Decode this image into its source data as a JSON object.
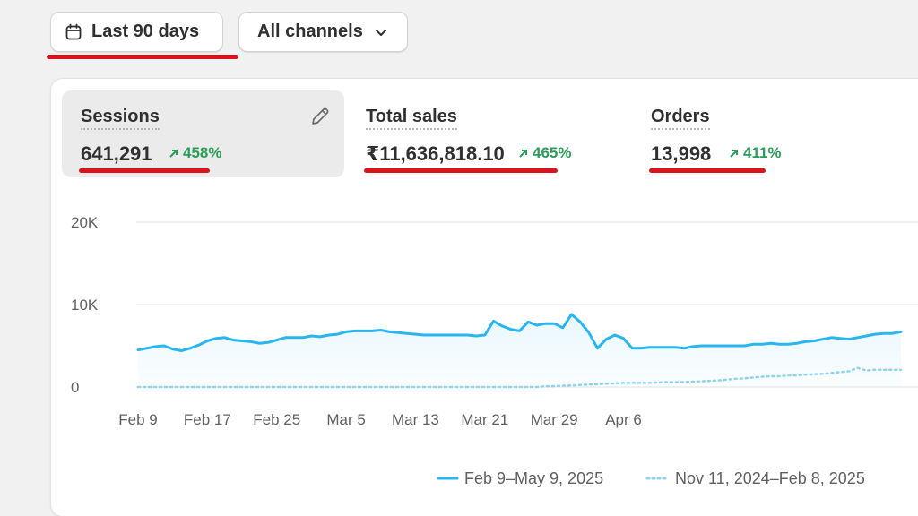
{
  "toolbar": {
    "date_range_label": "Last 90 days",
    "channels_label": "All channels"
  },
  "metrics": [
    {
      "label": "Sessions",
      "value": "641,291",
      "change": "458%"
    },
    {
      "label": "Total sales",
      "value": "₹11,636,818.10",
      "change": "465%"
    },
    {
      "label": "Orders",
      "value": "13,998",
      "change": "411%"
    }
  ],
  "colors": {
    "primary_series": "#29b6f0",
    "comparison_series": "#8fd3f2",
    "change_positive": "#2a9d57",
    "annotation_underline": "#d9141c"
  },
  "chart_data": {
    "type": "line",
    "title": "",
    "xlabel": "",
    "ylabel": "",
    "ylim": [
      0,
      20000
    ],
    "y_ticks": [
      "20K",
      "10K",
      "0"
    ],
    "x_ticks": [
      "Feb 9",
      "Feb 17",
      "Feb 25",
      "Mar 5",
      "Mar 13",
      "Mar 21",
      "Mar 29",
      "Apr 6"
    ],
    "x_start": "Feb 9",
    "grid": true,
    "legend_position": "bottom",
    "series": [
      {
        "name": "Feb 9–May 9, 2025",
        "style": "solid",
        "values": [
          4500,
          4700,
          4900,
          5000,
          4600,
          4400,
          4700,
          5100,
          5600,
          5900,
          6000,
          5700,
          5600,
          5500,
          5300,
          5400,
          5700,
          6000,
          6000,
          6000,
          6200,
          6100,
          6300,
          6400,
          6700,
          6800,
          6800,
          6800,
          6900,
          6700,
          6600,
          6500,
          6400,
          6300,
          6300,
          6300,
          6300,
          6300,
          6300,
          6200,
          6300,
          8000,
          7400,
          7000,
          6800,
          7900,
          7500,
          7700,
          7700,
          7200,
          8800,
          7900,
          6600,
          4700,
          5800,
          6300,
          5900,
          4700,
          4700,
          4800,
          4800,
          4800,
          4800,
          4700,
          4900,
          5000,
          5000,
          5000,
          5000,
          5000,
          5000,
          5200,
          5200,
          5300,
          5200,
          5200,
          5300,
          5500,
          5600,
          5800,
          6000,
          5900,
          5800,
          6000,
          6200,
          6400,
          6500,
          6500,
          6700
        ]
      },
      {
        "name": "Nov 11, 2024–Feb 8, 2025",
        "style": "dotted",
        "values": [
          0,
          0,
          0,
          0,
          0,
          0,
          0,
          0,
          0,
          0,
          0,
          0,
          0,
          0,
          0,
          0,
          0,
          0,
          0,
          0,
          0,
          0,
          0,
          0,
          0,
          0,
          0,
          0,
          0,
          0,
          0,
          0,
          0,
          0,
          0,
          0,
          0,
          0,
          0,
          0,
          0,
          0,
          0,
          0,
          0,
          0,
          0,
          100,
          100,
          150,
          200,
          250,
          300,
          350,
          400,
          450,
          500,
          500,
          500,
          500,
          550,
          600,
          600,
          600,
          650,
          700,
          750,
          800,
          900,
          1000,
          1050,
          1150,
          1250,
          1300,
          1300,
          1400,
          1400,
          1500,
          1550,
          1600,
          1700,
          1800,
          1900,
          2300,
          2000,
          2100,
          2100,
          2100,
          2100
        ]
      }
    ]
  }
}
